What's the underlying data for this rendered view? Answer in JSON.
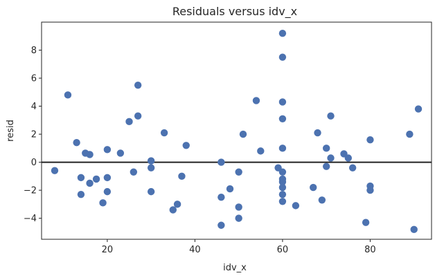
{
  "chart_data": {
    "type": "scatter",
    "title": "Residuals versus idv_x",
    "xlabel": "idv_x",
    "ylabel": "resid",
    "xlim": [
      5,
      94
    ],
    "ylim": [
      -5.5,
      10.0
    ],
    "xticks": [
      20,
      40,
      60,
      80
    ],
    "yticks": [
      -4,
      -2,
      0,
      2,
      4,
      6,
      8
    ],
    "reference_line_y": 0,
    "grid": false,
    "marker_color": "#4c72b0",
    "line_color": "#222222",
    "points": [
      {
        "x": 8,
        "y": -0.6
      },
      {
        "x": 11,
        "y": 4.8
      },
      {
        "x": 13,
        "y": 1.4
      },
      {
        "x": 14,
        "y": -1.1
      },
      {
        "x": 14,
        "y": -2.3
      },
      {
        "x": 15,
        "y": 0.65
      },
      {
        "x": 16,
        "y": 0.55
      },
      {
        "x": 16,
        "y": -1.5
      },
      {
        "x": 17.5,
        "y": -1.2
      },
      {
        "x": 19,
        "y": -2.9
      },
      {
        "x": 20,
        "y": 0.9
      },
      {
        "x": 20,
        "y": -1.1
      },
      {
        "x": 20,
        "y": -2.1
      },
      {
        "x": 23,
        "y": 0.65
      },
      {
        "x": 25,
        "y": 2.9
      },
      {
        "x": 26,
        "y": -0.7
      },
      {
        "x": 27,
        "y": 3.3
      },
      {
        "x": 27,
        "y": 5.5
      },
      {
        "x": 30,
        "y": 0.1
      },
      {
        "x": 30,
        "y": -0.4
      },
      {
        "x": 30,
        "y": -2.1
      },
      {
        "x": 33,
        "y": 2.1
      },
      {
        "x": 35,
        "y": -3.4
      },
      {
        "x": 36,
        "y": -3.0
      },
      {
        "x": 37,
        "y": -1.0
      },
      {
        "x": 38,
        "y": 1.2
      },
      {
        "x": 46,
        "y": 0.0
      },
      {
        "x": 46,
        "y": -2.5
      },
      {
        "x": 46,
        "y": -4.5
      },
      {
        "x": 48,
        "y": -1.9
      },
      {
        "x": 50,
        "y": -0.7
      },
      {
        "x": 50,
        "y": -3.2
      },
      {
        "x": 50,
        "y": -4.0
      },
      {
        "x": 51,
        "y": 2.0
      },
      {
        "x": 54,
        "y": 4.4
      },
      {
        "x": 55,
        "y": 0.8
      },
      {
        "x": 59,
        "y": -0.4
      },
      {
        "x": 60,
        "y": 9.2
      },
      {
        "x": 60,
        "y": 7.5
      },
      {
        "x": 60,
        "y": 4.3
      },
      {
        "x": 60,
        "y": 3.1
      },
      {
        "x": 60,
        "y": 1.0
      },
      {
        "x": 60,
        "y": -0.7
      },
      {
        "x": 60,
        "y": -1.2
      },
      {
        "x": 60,
        "y": -1.4
      },
      {
        "x": 60,
        "y": -1.8
      },
      {
        "x": 60,
        "y": -2.3
      },
      {
        "x": 60,
        "y": -2.8
      },
      {
        "x": 63,
        "y": -3.1
      },
      {
        "x": 67,
        "y": -1.8
      },
      {
        "x": 68,
        "y": 2.1
      },
      {
        "x": 69,
        "y": -2.7
      },
      {
        "x": 70,
        "y": 1.0
      },
      {
        "x": 70,
        "y": -0.3
      },
      {
        "x": 71,
        "y": 0.3
      },
      {
        "x": 71,
        "y": 3.3
      },
      {
        "x": 74,
        "y": 0.6
      },
      {
        "x": 75,
        "y": 0.3
      },
      {
        "x": 76,
        "y": -0.4
      },
      {
        "x": 79,
        "y": -4.3
      },
      {
        "x": 80,
        "y": 1.6
      },
      {
        "x": 80,
        "y": -1.7
      },
      {
        "x": 80,
        "y": -2.0
      },
      {
        "x": 89,
        "y": 2.0
      },
      {
        "x": 90,
        "y": -4.8
      },
      {
        "x": 91,
        "y": 3.8
      }
    ]
  }
}
